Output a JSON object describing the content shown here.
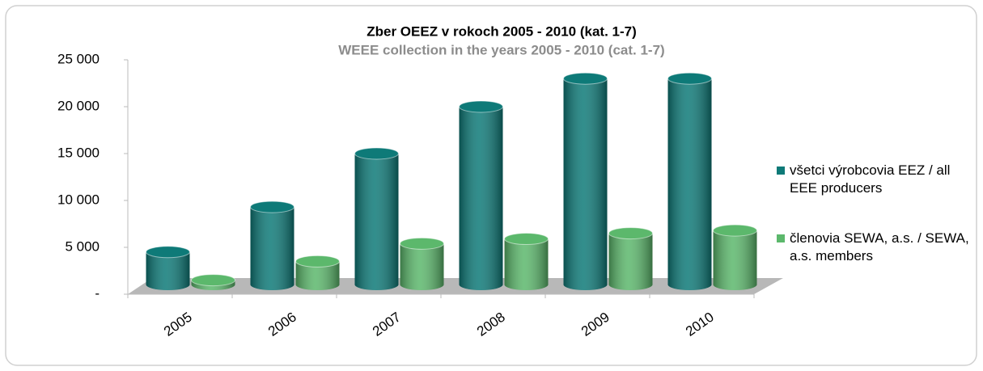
{
  "chart_data": {
    "type": "bar",
    "title": "Zber OEEZ v rokoch 2005 - 2010 (kat. 1-7)",
    "subtitle": "WEEE collection in the years 2005 - 2010 (cat. 1-7)",
    "categories": [
      "2005",
      "2006",
      "2007",
      "2008",
      "2009",
      "2010"
    ],
    "series": [
      {
        "name": "všetci výrobcovia EEZ / all EEE producers",
        "color": "#0e7a78",
        "values": [
          4500,
          9300,
          15000,
          20000,
          23000,
          23000
        ]
      },
      {
        "name": "členovia SEWA, a.s. / SEWA, a.s. members",
        "color": "#5cb86c",
        "values": [
          1500,
          3500,
          5400,
          5900,
          6500,
          6800
        ]
      }
    ],
    "ylim": [
      0,
      25000
    ],
    "yticks": [
      {
        "value": 0,
        "label": "-"
      },
      {
        "value": 5000,
        "label": "5 000"
      },
      {
        "value": 10000,
        "label": "10 000"
      },
      {
        "value": 15000,
        "label": "15 000"
      },
      {
        "value": 20000,
        "label": "20 000"
      },
      {
        "value": 25000,
        "label": "25 000"
      }
    ],
    "legend": "right"
  }
}
